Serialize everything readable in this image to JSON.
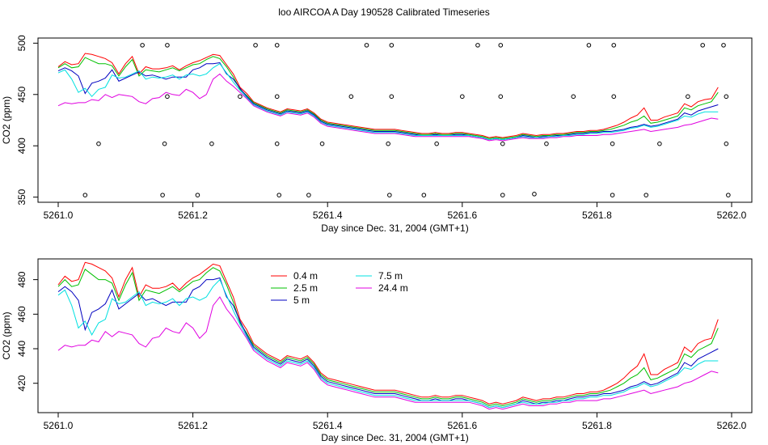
{
  "title": "loo AIRCOA A  Day 190528  Calibrated Timeseries",
  "colors": {
    "0.4 m": "#ff0000",
    "2.5 m": "#00c000",
    "5 m": "#0000c0",
    "7.5 m": "#00e0e0",
    "24.4 m": "#e000e0"
  },
  "chart_data": [
    {
      "type": "scatter+line",
      "title": "",
      "xlabel": "Day since Dec. 31, 2004 (GMT+1)",
      "ylabel": "CO2 (ppm)",
      "xlim": [
        5260.97,
        5262.03
      ],
      "ylim": [
        345,
        505
      ],
      "xticks": [
        "5261.0",
        "5261.2",
        "5261.4",
        "5261.6",
        "5261.8",
        "5262.0"
      ],
      "xtick_values": [
        5261.0,
        5261.2,
        5261.4,
        5261.6,
        5261.8,
        5262.0
      ],
      "yticks": [
        "350",
        "400",
        "450",
        "500"
      ],
      "ytick_values": [
        350,
        400,
        450,
        500
      ],
      "grid": false,
      "legend": "none",
      "series": [
        "0.4 m",
        "2.5 m",
        "5 m",
        "7.5 m",
        "24.4 m"
      ],
      "markers": [
        [
          5261.125,
          498
        ],
        [
          5261.162,
          498
        ],
        [
          5261.293,
          498
        ],
        [
          5261.325,
          498
        ],
        [
          5261.458,
          498
        ],
        [
          5261.495,
          498
        ],
        [
          5261.623,
          498
        ],
        [
          5261.657,
          498
        ],
        [
          5261.788,
          498
        ],
        [
          5261.825,
          498
        ],
        [
          5261.957,
          498
        ],
        [
          5261.988,
          498
        ],
        [
          5261.162,
          448
        ],
        [
          5261.27,
          448
        ],
        [
          5261.325,
          448
        ],
        [
          5261.435,
          448
        ],
        [
          5261.495,
          448
        ],
        [
          5261.6,
          448
        ],
        [
          5261.657,
          448
        ],
        [
          5261.765,
          448
        ],
        [
          5261.825,
          448
        ],
        [
          5261.935,
          448
        ],
        [
          5261.992,
          448
        ],
        [
          5261.06,
          402
        ],
        [
          5261.158,
          402
        ],
        [
          5261.228,
          402
        ],
        [
          5261.325,
          402
        ],
        [
          5261.392,
          402
        ],
        [
          5261.49,
          402
        ],
        [
          5261.562,
          402
        ],
        [
          5261.66,
          402
        ],
        [
          5261.725,
          402
        ],
        [
          5261.823,
          402
        ],
        [
          5261.893,
          402
        ],
        [
          5261.992,
          402
        ],
        [
          5261.04,
          352
        ],
        [
          5261.155,
          352
        ],
        [
          5261.207,
          352
        ],
        [
          5261.328,
          352
        ],
        [
          5261.372,
          352
        ],
        [
          5261.492,
          352
        ],
        [
          5261.543,
          352
        ],
        [
          5261.66,
          352
        ],
        [
          5261.707,
          353
        ],
        [
          5261.823,
          352
        ],
        [
          5261.873,
          352
        ],
        [
          5261.995,
          352
        ]
      ]
    },
    {
      "type": "line",
      "title": "",
      "xlabel": "Day since Dec. 31, 2004 (GMT+1)",
      "ylabel": "CO2 (ppm)",
      "xlim": [
        5260.97,
        5262.03
      ],
      "ylim": [
        403,
        492
      ],
      "xticks": [
        "5261.0",
        "5261.2",
        "5261.4",
        "5261.6",
        "5261.8",
        "5262.0"
      ],
      "xtick_values": [
        5261.0,
        5261.2,
        5261.4,
        5261.6,
        5261.8,
        5262.0
      ],
      "yticks": [
        "420",
        "440",
        "460",
        "480"
      ],
      "ytick_values": [
        420,
        440,
        460,
        480
      ],
      "grid": false,
      "legend": "top-left",
      "legend_entries": [
        "0.4 m",
        "2.5 m",
        "5 m",
        "7.5 m",
        "24.4 m"
      ],
      "x": [
        5261.0,
        5261.01,
        5261.02,
        5261.03,
        5261.04,
        5261.05,
        5261.06,
        5261.07,
        5261.08,
        5261.09,
        5261.1,
        5261.11,
        5261.12,
        5261.13,
        5261.14,
        5261.15,
        5261.16,
        5261.17,
        5261.18,
        5261.19,
        5261.2,
        5261.21,
        5261.22,
        5261.23,
        5261.24,
        5261.25,
        5261.26,
        5261.27,
        5261.28,
        5261.29,
        5261.3,
        5261.31,
        5261.32,
        5261.33,
        5261.34,
        5261.35,
        5261.36,
        5261.37,
        5261.38,
        5261.39,
        5261.4,
        5261.41,
        5261.42,
        5261.43,
        5261.44,
        5261.45,
        5261.46,
        5261.47,
        5261.48,
        5261.49,
        5261.5,
        5261.51,
        5261.52,
        5261.53,
        5261.54,
        5261.55,
        5261.56,
        5261.57,
        5261.58,
        5261.59,
        5261.6,
        5261.61,
        5261.62,
        5261.63,
        5261.64,
        5261.65,
        5261.66,
        5261.67,
        5261.68,
        5261.69,
        5261.7,
        5261.71,
        5261.72,
        5261.73,
        5261.74,
        5261.75,
        5261.76,
        5261.77,
        5261.78,
        5261.79,
        5261.8,
        5261.81,
        5261.82,
        5261.83,
        5261.84,
        5261.85,
        5261.86,
        5261.87,
        5261.88,
        5261.89,
        5261.9,
        5261.91,
        5261.92,
        5261.93,
        5261.94,
        5261.95,
        5261.96,
        5261.97,
        5261.98
      ],
      "series": [
        {
          "name": "0.4 m",
          "values": [
            477,
            482,
            479,
            480,
            490,
            489,
            487,
            485,
            481,
            470,
            480,
            487,
            470,
            477,
            475,
            475,
            476,
            478,
            474,
            478,
            481,
            483,
            486,
            489,
            488,
            479,
            470,
            457,
            451,
            443,
            440,
            437,
            435,
            433,
            436,
            435,
            434,
            436,
            432,
            426,
            423,
            422,
            421,
            420,
            419,
            418,
            417,
            416,
            416,
            416,
            416,
            415,
            414,
            413,
            412,
            412,
            413,
            412,
            412,
            413,
            413,
            412,
            411,
            410,
            408,
            409,
            408,
            409,
            410,
            412,
            411,
            410,
            411,
            411,
            412,
            412,
            413,
            414,
            414,
            415,
            415,
            416,
            418,
            420,
            423,
            427,
            430,
            437,
            425,
            425,
            428,
            430,
            432,
            441,
            438,
            443,
            445,
            446,
            457
          ]
        },
        {
          "name": "2.5 m",
          "values": [
            476,
            480,
            476,
            477,
            486,
            483,
            480,
            480,
            478,
            468,
            477,
            484,
            468,
            474,
            473,
            472,
            474,
            476,
            473,
            476,
            479,
            480,
            484,
            487,
            485,
            477,
            467,
            455,
            449,
            442,
            439,
            436,
            434,
            432,
            435,
            434,
            433,
            435,
            431,
            425,
            422,
            421,
            420,
            419,
            418,
            417,
            416,
            415,
            415,
            415,
            415,
            414,
            413,
            412,
            411,
            411,
            412,
            411,
            411,
            412,
            412,
            411,
            410,
            409,
            407,
            408,
            407,
            408,
            409,
            411,
            410,
            409,
            410,
            410,
            411,
            411,
            412,
            413,
            413,
            414,
            414,
            415,
            416,
            418,
            420,
            423,
            425,
            429,
            422,
            423,
            425,
            427,
            429,
            437,
            435,
            439,
            441,
            443,
            452
          ]
        },
        {
          "name": "5 m",
          "values": [
            473,
            476,
            473,
            468,
            451,
            461,
            463,
            466,
            474,
            463,
            466,
            469,
            472,
            468,
            469,
            467,
            465,
            467,
            467,
            467,
            474,
            476,
            480,
            480,
            481,
            470,
            465,
            456,
            448,
            441,
            438,
            435,
            433,
            431,
            434,
            433,
            432,
            434,
            430,
            424,
            421,
            420,
            419,
            418,
            417,
            416,
            415,
            414,
            414,
            414,
            414,
            413,
            412,
            411,
            410,
            410,
            411,
            410,
            410,
            411,
            411,
            410,
            409,
            408,
            406,
            407,
            406,
            407,
            408,
            410,
            409,
            408,
            409,
            409,
            410,
            410,
            411,
            412,
            412,
            413,
            413,
            414,
            414,
            415,
            416,
            418,
            419,
            421,
            419,
            420,
            422,
            424,
            426,
            432,
            430,
            434,
            436,
            438,
            440
          ]
        },
        {
          "name": "7.5 m",
          "values": [
            471,
            474,
            465,
            452,
            456,
            448,
            455,
            457,
            469,
            466,
            467,
            470,
            473,
            465,
            467,
            466,
            467,
            469,
            465,
            469,
            470,
            468,
            470,
            476,
            480,
            471,
            462,
            454,
            447,
            440,
            437,
            434,
            432,
            430,
            433,
            432,
            431,
            433,
            429,
            423,
            420,
            419,
            418,
            417,
            416,
            415,
            414,
            413,
            413,
            413,
            413,
            412,
            411,
            410,
            410,
            410,
            410,
            410,
            410,
            410,
            410,
            410,
            409,
            408,
            406,
            407,
            406,
            407,
            408,
            409,
            408,
            408,
            408,
            409,
            409,
            410,
            410,
            411,
            411,
            412,
            412,
            413,
            413,
            414,
            415,
            417,
            418,
            420,
            418,
            419,
            421,
            423,
            425,
            429,
            428,
            431,
            433,
            433,
            433
          ]
        },
        {
          "name": "24.4 m",
          "values": [
            439,
            442,
            441,
            442,
            442,
            445,
            444,
            450,
            447,
            450,
            449,
            448,
            443,
            441,
            446,
            447,
            452,
            450,
            449,
            455,
            452,
            446,
            450,
            465,
            470,
            463,
            458,
            452,
            446,
            439,
            436,
            433,
            431,
            429,
            432,
            431,
            430,
            432,
            428,
            422,
            419,
            418,
            417,
            416,
            415,
            414,
            413,
            412,
            412,
            412,
            412,
            411,
            410,
            409,
            409,
            409,
            409,
            409,
            409,
            409,
            409,
            409,
            408,
            407,
            405,
            406,
            405,
            406,
            407,
            408,
            407,
            407,
            407,
            408,
            408,
            409,
            409,
            410,
            410,
            410,
            410,
            411,
            411,
            412,
            413,
            414,
            415,
            416,
            414,
            415,
            416,
            417,
            418,
            420,
            421,
            423,
            425,
            427,
            426
          ]
        }
      ]
    }
  ]
}
